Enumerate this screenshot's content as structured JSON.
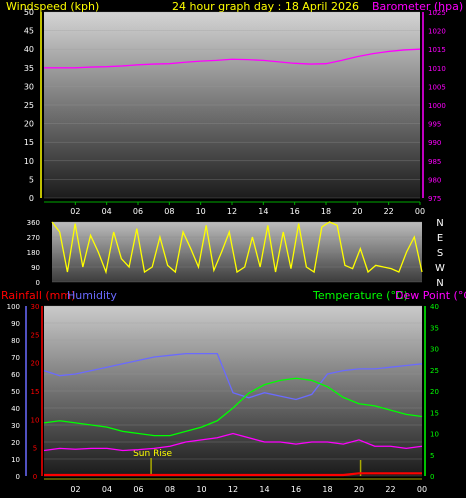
{
  "header": {
    "left": "Windspeed (kph)",
    "center": "24 hour graph day : 18 April 2026",
    "right": "Barometer (hpa)"
  },
  "compass": [
    "N",
    "W",
    "S",
    "E",
    "N"
  ],
  "bottom_labels": {
    "rainfall": "Rainfall (mm)",
    "humidity": "Humidity",
    "temperature": "Temperature (°C)",
    "dewpoint": "Dew Point (°C)"
  },
  "annotations": {
    "sunrise": "Sun Rise"
  },
  "colors": {
    "windspeed": "#ffff00",
    "barometer": "#ff00ff",
    "rainfall": "#ff0000",
    "humidity": "#6a6aff",
    "temperature": "#00ff00",
    "dewpoint": "#ff00ff",
    "winddir": "#ffff00",
    "sunrise": "#aaaa00"
  },
  "x_ticks": [
    "02",
    "04",
    "06",
    "08",
    "10",
    "12",
    "14",
    "16",
    "18",
    "20",
    "22",
    "00"
  ],
  "chart_data": [
    {
      "type": "line",
      "title": "24 hour graph day : 18 April 2026",
      "x": [
        0,
        1,
        2,
        3,
        4,
        5,
        6,
        7,
        8,
        9,
        10,
        11,
        12,
        13,
        14,
        15,
        16,
        17,
        18,
        19,
        20,
        21,
        22,
        23,
        24
      ],
      "y_left": {
        "label": "Windspeed (kph)",
        "ticks": [
          0,
          5,
          10,
          15,
          20,
          25,
          30,
          35,
          40,
          45,
          50
        ]
      },
      "y_right": {
        "label": "Barometer (hpa)",
        "ticks": [
          975,
          980,
          985,
          990,
          995,
          1000,
          1005,
          1010,
          1015,
          1020,
          1025
        ]
      },
      "series": [
        {
          "name": "Barometer (hpa)",
          "axis": "right",
          "values": [
            1010.0,
            1010.0,
            1010.0,
            1010.2,
            1010.3,
            1010.5,
            1010.8,
            1011.0,
            1011.1,
            1011.5,
            1011.8,
            1012.0,
            1012.3,
            1012.2,
            1012.0,
            1011.6,
            1011.2,
            1011.0,
            1011.1,
            1012.0,
            1013.0,
            1013.8,
            1014.4,
            1014.8,
            1015.0
          ]
        }
      ],
      "ylim": [
        0,
        50
      ]
    },
    {
      "type": "line",
      "x": [
        0,
        0.5,
        1,
        1.5,
        2,
        2.5,
        3,
        3.5,
        4,
        4.5,
        5,
        5.5,
        6,
        6.5,
        7,
        7.5,
        8,
        8.5,
        9,
        9.5,
        10,
        10.5,
        11,
        11.5,
        12,
        12.5,
        13,
        13.5,
        14,
        14.5,
        15,
        15.5,
        16,
        16.5,
        17,
        17.5,
        18,
        18.5,
        19,
        19.5,
        20,
        20.5,
        21,
        21.5,
        22,
        22.5,
        23,
        23.5,
        24
      ],
      "y_left": {
        "ticks": [
          0,
          90,
          180,
          270,
          360
        ]
      },
      "y_right": {
        "ticks": [
          "N",
          "W",
          "S",
          "E",
          "N"
        ]
      },
      "series": [
        {
          "name": "Wind direction",
          "values": [
            360,
            300,
            60,
            350,
            90,
            280,
            180,
            60,
            300,
            140,
            90,
            320,
            60,
            90,
            270,
            100,
            60,
            300,
            200,
            90,
            340,
            70,
            180,
            300,
            60,
            90,
            270,
            90,
            340,
            60,
            300,
            80,
            350,
            90,
            60,
            330,
            360,
            340,
            100,
            80,
            200,
            60,
            100,
            90,
            80,
            60,
            180,
            270,
            60
          ]
        }
      ],
      "ylim": [
        0,
        360
      ]
    },
    {
      "type": "line",
      "x": [
        0,
        1,
        2,
        3,
        4,
        5,
        6,
        7,
        8,
        9,
        10,
        11,
        12,
        13,
        14,
        15,
        16,
        17,
        18,
        19,
        20,
        21,
        22,
        23,
        24
      ],
      "y_left_outer": {
        "label": "Humidity",
        "ticks": [
          0,
          10,
          20,
          30,
          40,
          50,
          60,
          70,
          80,
          90,
          100
        ]
      },
      "y_left_inner": {
        "label": "Rainfall (mm)",
        "ticks": [
          0,
          5,
          10,
          15,
          20,
          25,
          30
        ]
      },
      "y_right": {
        "label": "Temperature (°C)",
        "ticks": [
          0,
          5,
          10,
          15,
          20,
          25,
          30,
          35,
          40
        ]
      },
      "series": [
        {
          "name": "Humidity",
          "axis": "left_outer",
          "values": [
            62,
            59,
            60,
            62,
            64,
            66,
            68,
            70,
            71,
            72,
            72,
            72,
            49,
            46,
            49,
            47,
            45,
            48,
            60,
            62,
            63,
            63,
            64,
            65,
            66
          ]
        },
        {
          "name": "Temperature (°C)",
          "axis": "right",
          "values": [
            12.5,
            13,
            12.5,
            12,
            11.5,
            10.5,
            10,
            9.5,
            9.5,
            10.5,
            11.5,
            13,
            16,
            19.5,
            21.5,
            22.5,
            23,
            22.5,
            21,
            18.5,
            17,
            16.5,
            15.5,
            14.5,
            14
          ]
        },
        {
          "name": "Dew Point (°C)",
          "axis": "right",
          "values": [
            6,
            6.5,
            6.3,
            6.5,
            6.5,
            6,
            6.2,
            6.5,
            7,
            8,
            8.5,
            9,
            10,
            9,
            8,
            8,
            7.5,
            8,
            8,
            7.5,
            8.5,
            7,
            7,
            6.5,
            7
          ]
        },
        {
          "name": "Rainfall (mm)",
          "axis": "left_inner",
          "values": [
            0,
            0,
            0,
            0,
            0,
            0,
            0,
            0,
            0,
            0,
            0,
            0,
            0,
            0,
            0,
            0,
            0,
            0,
            0,
            0,
            0.3,
            0.3,
            0.3,
            0.3,
            0.3
          ]
        }
      ],
      "sunrise_hour": 6.8,
      "sunset_hour": 20.1,
      "ylim": [
        0,
        100
      ]
    }
  ]
}
